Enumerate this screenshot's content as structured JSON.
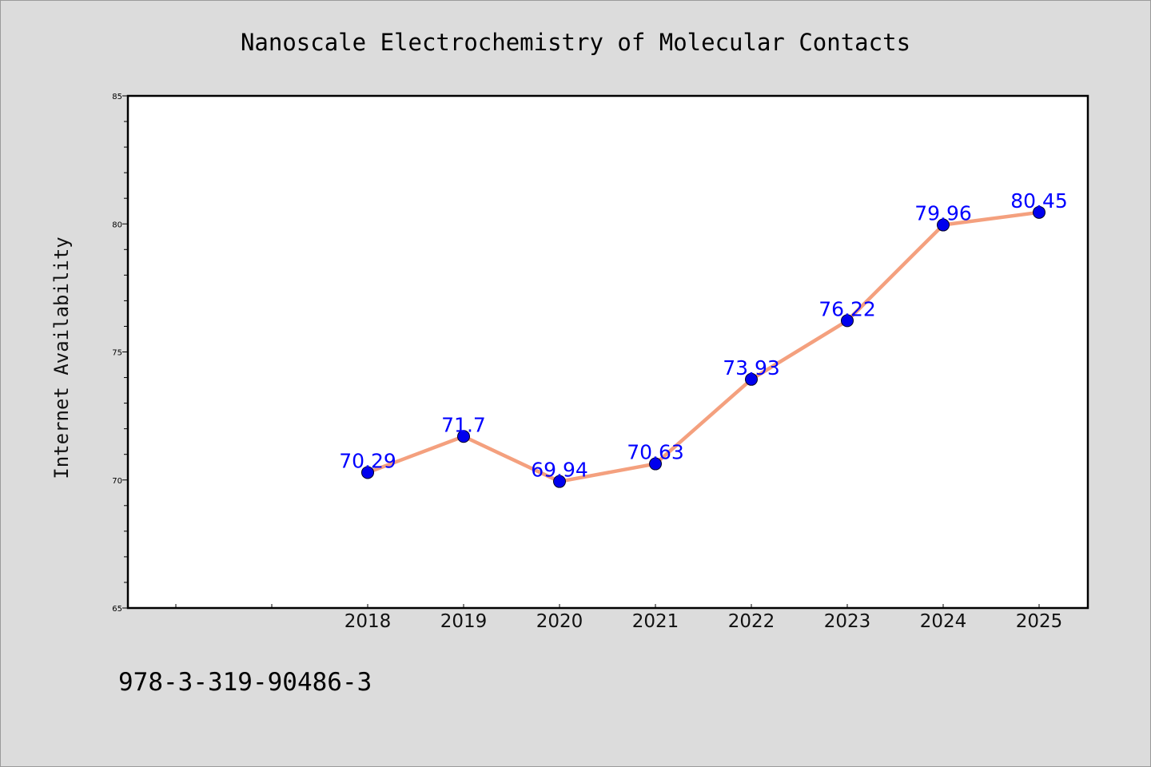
{
  "chart_data": {
    "type": "line",
    "title": "Nanoscale Electrochemistry of Molecular Contacts",
    "xlabel": "",
    "ylabel": "Internet Availability",
    "categories": [
      "2018",
      "2019",
      "2020",
      "2021",
      "2022",
      "2023",
      "2024",
      "2025"
    ],
    "values": [
      70.29,
      71.7,
      69.94,
      70.63,
      73.93,
      76.22,
      79.96,
      80.45
    ],
    "data_labels": [
      "70.29",
      "71.7",
      "69.94",
      "70.63",
      "73.93",
      "76.22",
      "79.96",
      "80.45"
    ],
    "ylim": [
      65,
      85
    ],
    "yticks": [
      "65",
      "70",
      "75",
      "80",
      "85"
    ],
    "grid": false,
    "legend": "none",
    "line_color": "#f4a07e",
    "marker_color": "#0000ee",
    "label_color": "#0000ff",
    "background_color": "#dcdcdc",
    "plot_background": "#ffffff"
  },
  "footer": {
    "isbn": "978-3-319-90486-3"
  }
}
